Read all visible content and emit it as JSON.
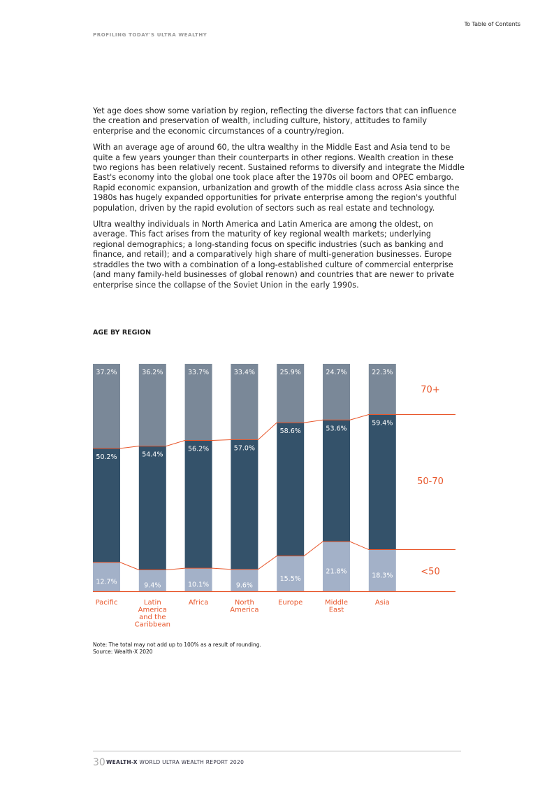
{
  "header": {
    "toc_link": "To Table of Contents",
    "running_title": "PROFILING TODAY'S ULTRA WEALTHY"
  },
  "body": {
    "paragraphs": [
      "Yet age does show some variation by region, reflecting the diverse factors that can influence the creation and preservation of wealth, including culture, history, attitudes to family enterprise and the economic circumstances of a country/region.",
      "With an average age of around 60, the ultra wealthy in the Middle East and Asia tend to be quite a few years younger than their counterparts in other regions. Wealth creation in these two regions has been relatively recent. Sustained reforms to diversify and integrate the Middle East's economy into the global one took place after the 1970s oil boom and OPEC embargo. Rapid economic expansion, urbanization and growth of the middle class across Asia since the 1980s has hugely expanded opportunities for private enterprise among the region's youthful population, driven by the rapid evolution of sectors such as real estate and technology.",
      "Ultra wealthy individuals in North America and Latin America are among the oldest, on average. This fact arises from the maturity of key regional wealth markets; underlying regional demographics; a long-standing focus on specific industries (such as banking and finance, and retail); and a comparatively high share of multi-generation businesses. Europe straddles the two with a combination of a long-established culture of commercial enterprise (and many family-held businesses of global renown) and countries that are newer to private enterprise since the collapse of the Soviet Union in the early 1990s."
    ]
  },
  "chart_data": {
    "type": "bar",
    "stacked": true,
    "title": "AGE BY REGION",
    "categories": [
      "Pacific",
      "Latin America and the Caribbean",
      "Africa",
      "North America",
      "Europe",
      "Middle East",
      "Asia"
    ],
    "category_lines": [
      [
        "Pacific"
      ],
      [
        "Latin",
        "America",
        "and the",
        "Caribbean"
      ],
      [
        "Africa"
      ],
      [
        "North",
        "America"
      ],
      [
        "Europe"
      ],
      [
        "Middle",
        "East"
      ],
      [
        "Asia"
      ]
    ],
    "series": [
      {
        "name": "<50",
        "values": [
          12.7,
          9.4,
          10.1,
          9.6,
          15.5,
          21.8,
          18.3
        ],
        "color": "#a3b1c8"
      },
      {
        "name": "50-70",
        "values": [
          50.2,
          54.4,
          56.2,
          57.0,
          58.6,
          53.6,
          59.4
        ],
        "color": "#34526a"
      },
      {
        "name": "70+",
        "values": [
          37.2,
          36.2,
          33.7,
          33.4,
          25.9,
          24.7,
          22.3
        ],
        "color": "#7a8898"
      }
    ],
    "ylim": [
      0,
      100
    ],
    "unit": "%",
    "legend_placement": "right",
    "accent_color": "#e8562a"
  },
  "notes": {
    "note": "Note: The total may not add up to 100% as a result of rounding.",
    "source": "Source: Wealth-X 2020"
  },
  "footer": {
    "page_number": "30",
    "brand": "WEALTH-X",
    "report_title": "WORLD ULTRA WEALTH REPORT 2020"
  }
}
